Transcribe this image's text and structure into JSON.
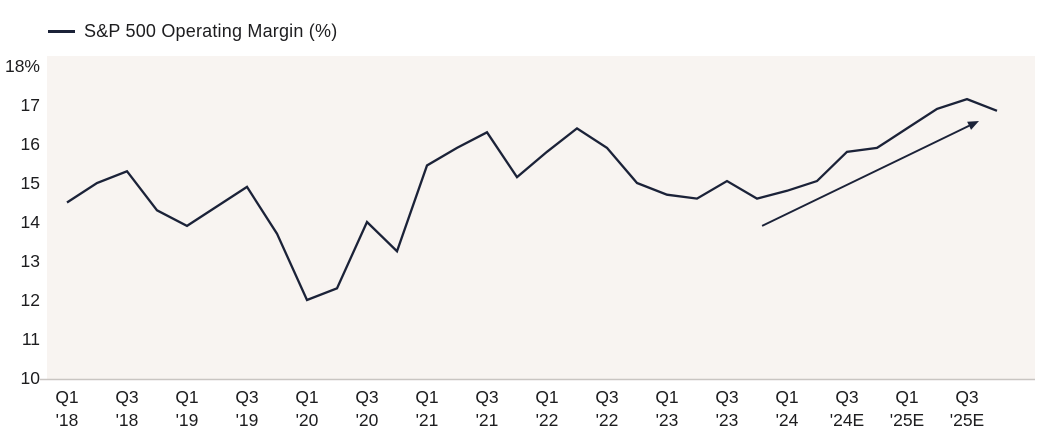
{
  "legend": {
    "label": "S&P 500 Operating Margin (%)"
  },
  "chart_data": {
    "type": "line",
    "title": "S&P 500 Operating Margin (%)",
    "series_name": "S&P 500 Operating Margin (%)",
    "x_tick_labels": [
      [
        "Q1",
        "'18"
      ],
      [
        "Q3",
        "'18"
      ],
      [
        "Q1",
        "'19"
      ],
      [
        "Q3",
        "'19"
      ],
      [
        "Q1",
        "'20"
      ],
      [
        "Q3",
        "'20"
      ],
      [
        "Q1",
        "'21"
      ],
      [
        "Q3",
        "'21"
      ],
      [
        "Q1",
        "'22"
      ],
      [
        "Q3",
        "'22"
      ],
      [
        "Q1",
        "'23"
      ],
      [
        "Q3",
        "'23"
      ],
      [
        "Q1",
        "'24"
      ],
      [
        "Q3",
        "'24E"
      ],
      [
        "Q1",
        "'25E"
      ],
      [
        "Q3",
        "'25E"
      ]
    ],
    "label_every_n_points": 2,
    "values": [
      14.5,
      15.0,
      15.3,
      14.3,
      13.9,
      14.4,
      14.9,
      13.7,
      12.0,
      12.3,
      14.0,
      13.25,
      15.45,
      15.9,
      16.3,
      15.15,
      15.8,
      16.4,
      15.9,
      15.0,
      14.7,
      14.6,
      15.05,
      14.6,
      14.8,
      15.05,
      15.8,
      15.9,
      16.4,
      16.9,
      17.15,
      16.85
    ],
    "ylim": [
      10,
      18
    ],
    "y_ticks": [
      {
        "value": 18,
        "label": "18%"
      },
      {
        "value": 17,
        "label": "17"
      },
      {
        "value": 16,
        "label": "16"
      },
      {
        "value": 15,
        "label": "15"
      },
      {
        "value": 14,
        "label": "14"
      },
      {
        "value": 13,
        "label": "13"
      },
      {
        "value": 12,
        "label": "12"
      },
      {
        "value": 11,
        "label": "11"
      },
      {
        "value": 10,
        "label": "10"
      }
    ],
    "grid": false,
    "legend_position": "top-left",
    "annotation_arrow": {
      "from_index": 23.17,
      "from_value": 13.9,
      "to_index": 30.4,
      "to_value": 16.59
    }
  },
  "colors": {
    "line": "#1b2238",
    "plot_background": "#f8f4f1",
    "axis_line": "#c9c5c2",
    "text": "#1d1d1f",
    "page_background": "#ffffff"
  }
}
